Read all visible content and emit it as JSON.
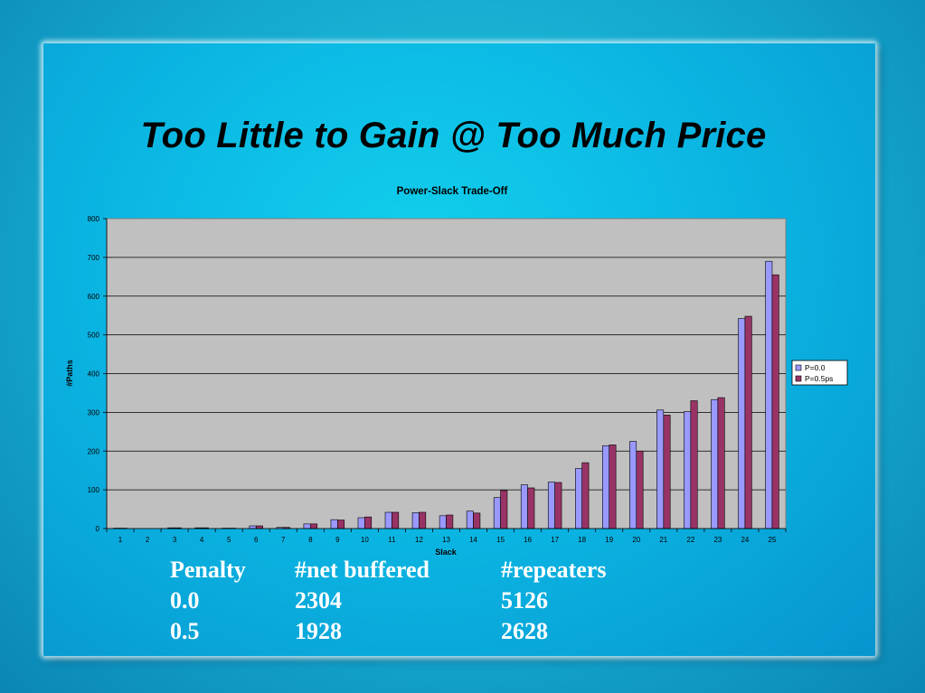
{
  "slide": {
    "title": "Too Little to Gain @ Too Much Price"
  },
  "chart_data": {
    "type": "bar",
    "title": "Power-Slack Trade-Off",
    "xlabel": "Slack",
    "ylabel": "#Paths",
    "ylim": [
      0,
      800
    ],
    "yticks": [
      0,
      100,
      200,
      300,
      400,
      500,
      600,
      700,
      800
    ],
    "grid": true,
    "legend_position": "right",
    "categories": [
      "1",
      "2",
      "3",
      "4",
      "5",
      "6",
      "7",
      "8",
      "9",
      "10",
      "11",
      "12",
      "13",
      "14",
      "15",
      "16",
      "17",
      "18",
      "19",
      "20",
      "21",
      "22",
      "23",
      "24",
      "25"
    ],
    "series": [
      {
        "name": "P=0.0",
        "color": "#9999ff",
        "values": [
          1,
          0,
          2,
          2,
          1,
          7,
          3,
          12,
          23,
          28,
          42,
          41,
          33,
          45,
          80,
          113,
          120,
          155,
          214,
          225,
          306,
          302,
          333,
          542,
          690
        ]
      },
      {
        "name": "P=0.5ps",
        "color": "#993366",
        "values": [
          1,
          0,
          2,
          2,
          1,
          7,
          3,
          12,
          22,
          30,
          42,
          42,
          35,
          40,
          98,
          105,
          119,
          170,
          216,
          200,
          293,
          330,
          338,
          548,
          655
        ]
      }
    ]
  },
  "table": {
    "headers": [
      "Penalty",
      "#net buffered",
      "#repeaters"
    ],
    "rows": [
      [
        "0.0",
        "2304",
        "5126"
      ],
      [
        "0.5",
        "1928",
        "2628"
      ]
    ]
  }
}
